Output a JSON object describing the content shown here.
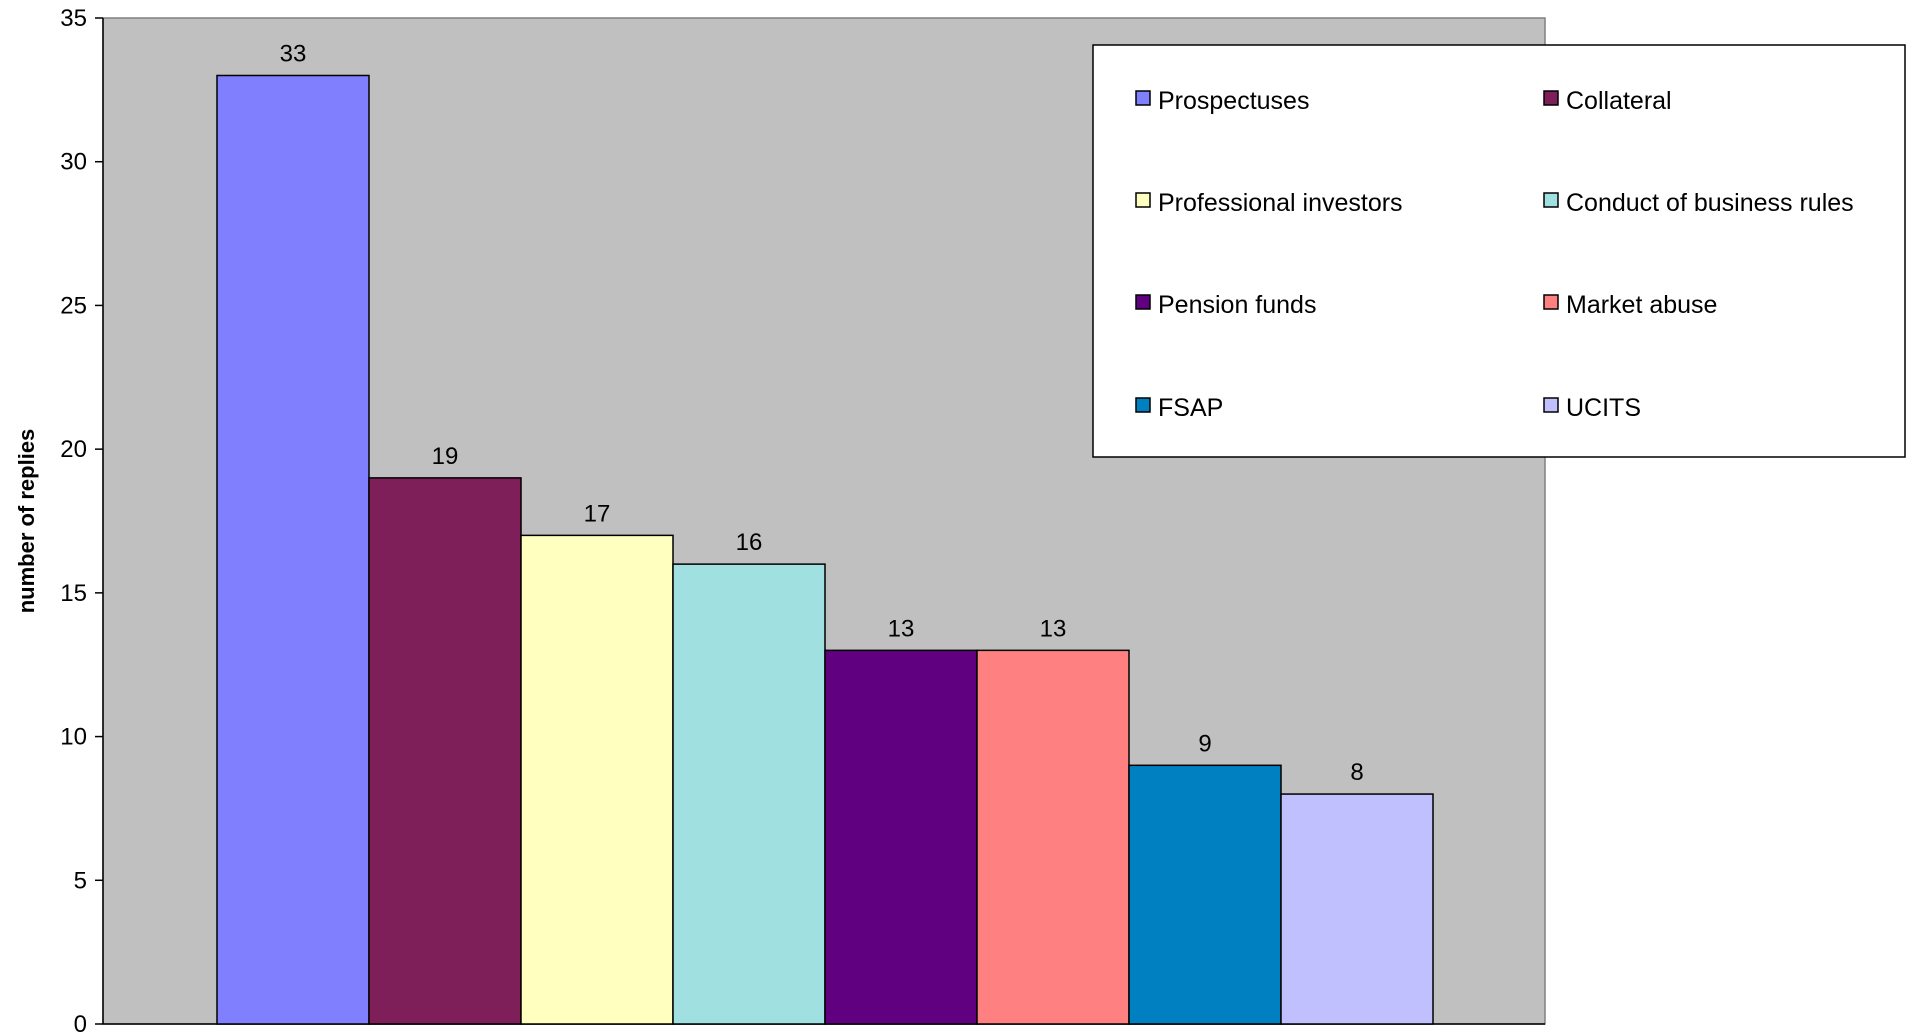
{
  "chart_data": {
    "type": "bar",
    "title": "",
    "xlabel": "",
    "ylabel": "number of replies",
    "ylim": [
      0,
      35
    ],
    "yticks": [
      0,
      5,
      10,
      15,
      20,
      25,
      30,
      35
    ],
    "grid": false,
    "legend_position": "top-right",
    "categories": [
      "Prospectuses",
      "Collateral",
      "Professional investors",
      "Conduct of business rules",
      "Pension funds",
      "Market abuse",
      "FSAP",
      "UCITS"
    ],
    "values": [
      33,
      19,
      17,
      16,
      13,
      13,
      9,
      8
    ],
    "colors": [
      "#8080ff",
      "#7f1f5a",
      "#ffffc0",
      "#a0e0e0",
      "#600080",
      "#ff8080",
      "#0080c0",
      "#c0c0ff"
    ],
    "plot_background": "#c0c0c0"
  }
}
